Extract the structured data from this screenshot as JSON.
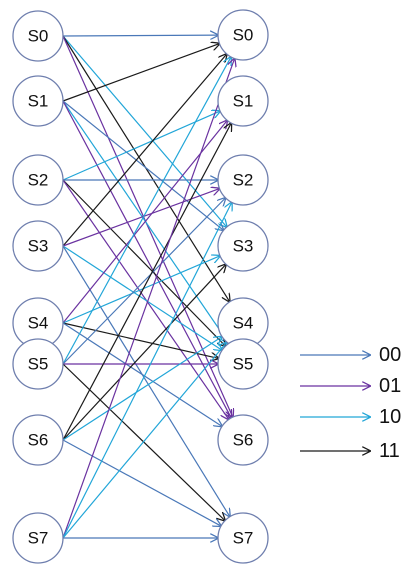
{
  "left_states": [
    "S0",
    "S1",
    "S2",
    "S3",
    "S4",
    "S5",
    "S6",
    "S7"
  ],
  "right_states": [
    "S0",
    "S1",
    "S2",
    "S3",
    "S4",
    "S5",
    "S6",
    "S7"
  ],
  "legend": [
    {
      "label": "00",
      "color": "#4a78b8"
    },
    {
      "label": "01",
      "color": "#6a32a0"
    },
    {
      "label": "10",
      "color": "#22a6d8"
    },
    {
      "label": "11",
      "color": "#1a1a1a"
    }
  ],
  "transitions": [
    {
      "from": 0,
      "to": 0,
      "input": "00"
    },
    {
      "from": 0,
      "to": 3,
      "input": "10"
    },
    {
      "from": 0,
      "to": 4,
      "input": "11"
    },
    {
      "from": 0,
      "to": 6,
      "input": "01"
    },
    {
      "from": 1,
      "to": 0,
      "input": "11"
    },
    {
      "from": 1,
      "to": 3,
      "input": "00"
    },
    {
      "from": 1,
      "to": 5,
      "input": "10"
    },
    {
      "from": 1,
      "to": 6,
      "input": "01"
    },
    {
      "from": 2,
      "to": 1,
      "input": "10"
    },
    {
      "from": 2,
      "to": 2,
      "input": "00"
    },
    {
      "from": 2,
      "to": 5,
      "input": "11"
    },
    {
      "from": 2,
      "to": 6,
      "input": "01"
    },
    {
      "from": 3,
      "to": 0,
      "input": "11"
    },
    {
      "from": 3,
      "to": 2,
      "input": "01"
    },
    {
      "from": 3,
      "to": 5,
      "input": "10"
    },
    {
      "from": 3,
      "to": 7,
      "input": "00"
    },
    {
      "from": 4,
      "to": 1,
      "input": "01"
    },
    {
      "from": 4,
      "to": 3,
      "input": "10"
    },
    {
      "from": 4,
      "to": 5,
      "input": "11"
    },
    {
      "from": 4,
      "to": 6,
      "input": "00"
    },
    {
      "from": 5,
      "to": 0,
      "input": "10"
    },
    {
      "from": 5,
      "to": 2,
      "input": "00"
    },
    {
      "from": 5,
      "to": 5,
      "input": "01"
    },
    {
      "from": 5,
      "to": 7,
      "input": "11"
    },
    {
      "from": 6,
      "to": 1,
      "input": "11"
    },
    {
      "from": 6,
      "to": 3,
      "input": "11"
    },
    {
      "from": 6,
      "to": 4,
      "input": "10"
    },
    {
      "from": 6,
      "to": 7,
      "input": "00"
    },
    {
      "from": 7,
      "to": 0,
      "input": "01"
    },
    {
      "from": 7,
      "to": 2,
      "input": "10"
    },
    {
      "from": 7,
      "to": 4,
      "input": "10"
    },
    {
      "from": 7,
      "to": 7,
      "input": "00"
    }
  ]
}
